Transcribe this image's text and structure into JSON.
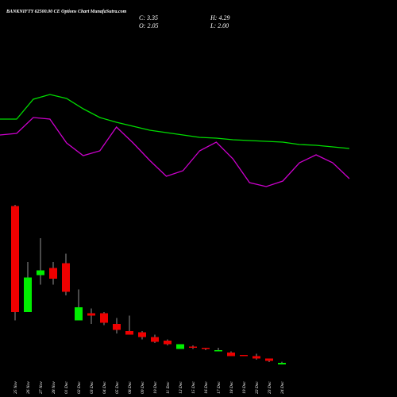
{
  "chart_data": {
    "type": "candlestick",
    "title": "BANKNIFTY 62500.00 CE Options  Chart MunafaSutra.com",
    "header": {
      "close": "C: 3.35",
      "high": "H: 4.29",
      "open": "O: 2.05",
      "low": "L: 2.00"
    },
    "categories": [
      "25 Nov",
      "26 Nov",
      "27 Nov",
      "28 Nov",
      "01 Dec",
      "02 Dec",
      "03 Dec",
      "04 Dec",
      "05 Dec",
      "08 Dec",
      "09 Dec",
      "10 Dec",
      "11 Dec",
      "12 Dec",
      "15 Dec",
      "16 Dec",
      "17 Dec",
      "18 Dec",
      "19 Dec",
      "22 Dec",
      "23 Dec",
      "24 Dec"
    ],
    "open": [
      135,
      46,
      77,
      83,
      87,
      39,
      45,
      45,
      36,
      30,
      29,
      25,
      22,
      15,
      17,
      16,
      13,
      12,
      10,
      9,
      7,
      2.05
    ],
    "high": [
      136,
      88,
      108,
      88,
      95,
      65,
      49,
      46,
      41,
      43,
      30,
      27,
      23,
      19,
      18,
      16,
      16,
      13,
      10,
      11,
      7,
      4.29
    ],
    "low": [
      39,
      46,
      69,
      69,
      60,
      39,
      36,
      35,
      28,
      27,
      23,
      20,
      18,
      15,
      15,
      14,
      13,
      9,
      9,
      6,
      4,
      2.0
    ],
    "close": [
      46,
      75,
      81,
      74,
      63,
      50,
      43,
      37,
      31,
      27,
      25,
      21,
      19,
      19,
      16,
      15,
      14,
      9,
      9,
      7,
      5,
      3.35
    ],
    "up_color": "#00ee00",
    "down_color": "#ee0000",
    "ylim": [
      0,
      140
    ],
    "y2lim": [
      0,
      200
    ],
    "series": [
      {
        "color": "#00dd00",
        "axis": "y2",
        "values": [
          150,
          150,
          175,
          181,
          176,
          163,
          152,
          146,
          141,
          136,
          133,
          130,
          127,
          126,
          124,
          123,
          122,
          121,
          118,
          117,
          115,
          113
        ]
      },
      {
        "color": "#cc00cc",
        "axis": "y2",
        "values": [
          130,
          132,
          152,
          150,
          120,
          104,
          110,
          140,
          120,
          98,
          78,
          85,
          110,
          121,
          100,
          70,
          65,
          72,
          95,
          105,
          95,
          75
        ]
      }
    ]
  }
}
